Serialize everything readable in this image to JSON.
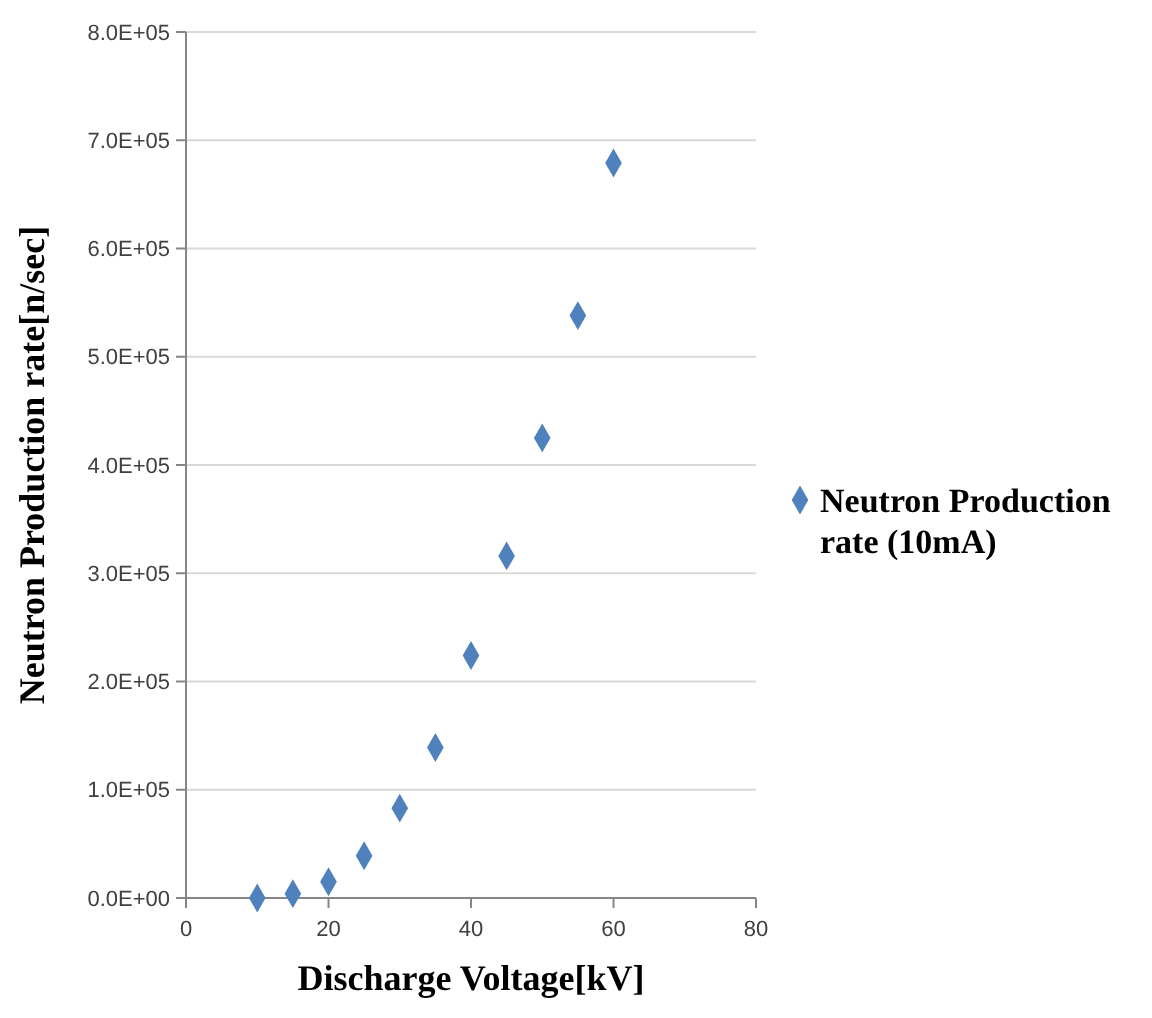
{
  "chart_data": {
    "type": "scatter",
    "xlabel": "Discharge Voltage[kV]",
    "ylabel": "Neutron Production rate[n/sec]",
    "x": [
      10,
      15,
      20,
      25,
      30,
      35,
      40,
      45,
      50,
      55,
      60
    ],
    "series": [
      {
        "name": "Neutron Production rate (10mA)",
        "color": "#4f81bd",
        "values": [
          0,
          4000,
          15000,
          39000,
          83000,
          139000,
          224000,
          316000,
          425000,
          538000,
          679000
        ]
      }
    ],
    "xlim": [
      0,
      80
    ],
    "xticks": [
      0,
      20,
      40,
      60,
      80
    ],
    "ylim": [
      0,
      800000
    ],
    "yticks": [
      {
        "value": 0,
        "label": "0.0E+00"
      },
      {
        "value": 100000,
        "label": "1.0E+05"
      },
      {
        "value": 200000,
        "label": "2.0E+05"
      },
      {
        "value": 300000,
        "label": "3.0E+05"
      },
      {
        "value": 400000,
        "label": "4.0E+05"
      },
      {
        "value": 500000,
        "label": "5.0E+05"
      },
      {
        "value": 600000,
        "label": "6.0E+05"
      },
      {
        "value": 700000,
        "label": "7.0E+05"
      },
      {
        "value": 800000,
        "label": "8.0E+05"
      }
    ],
    "grid": "y",
    "legend": "right",
    "marker": "diamond"
  }
}
